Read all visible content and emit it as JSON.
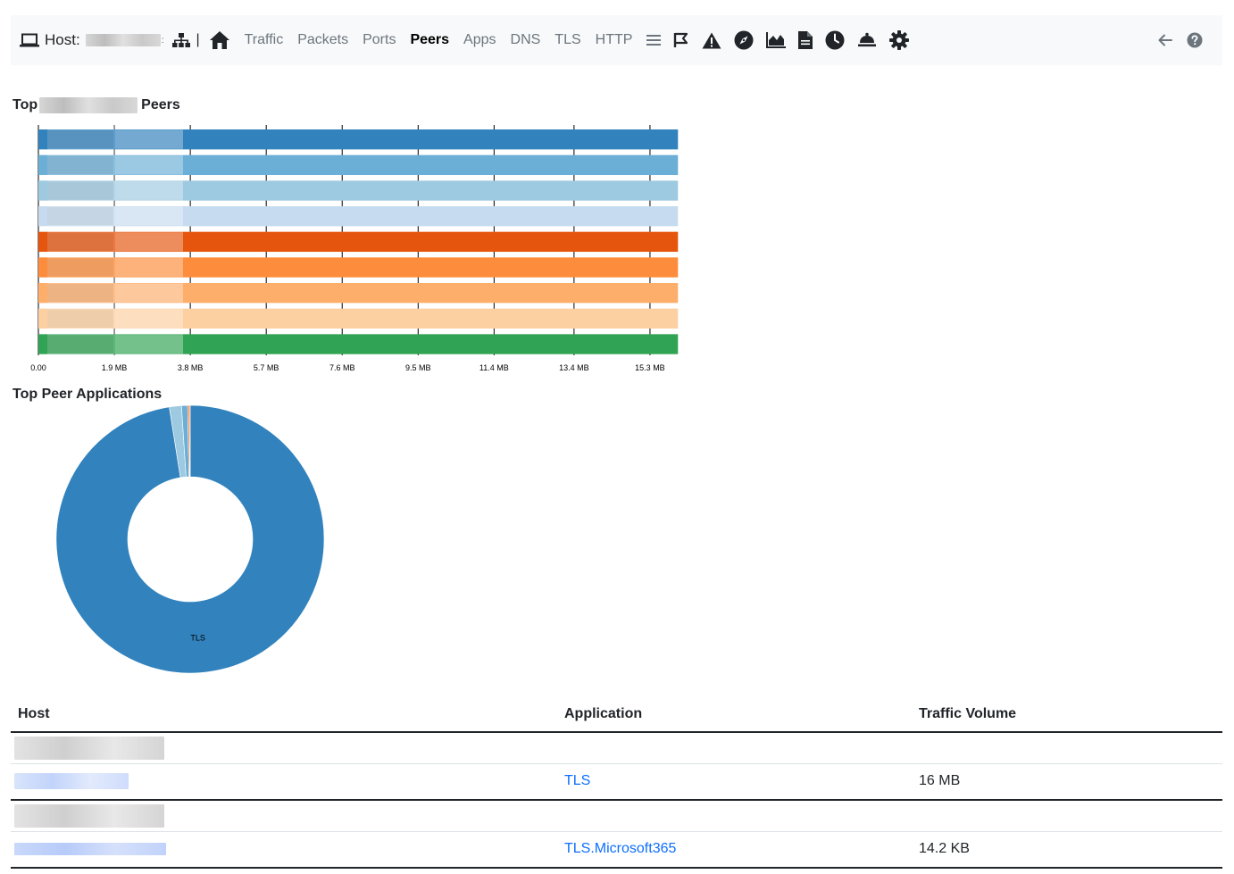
{
  "navbar": {
    "host_label": "Host:",
    "separator": "|",
    "items": [
      {
        "label": "Traffic",
        "active": false
      },
      {
        "label": "Packets",
        "active": false
      },
      {
        "label": "Ports",
        "active": false
      },
      {
        "label": "Peers",
        "active": true
      },
      {
        "label": "Apps",
        "active": false
      },
      {
        "label": "DNS",
        "active": false
      },
      {
        "label": "TLS",
        "active": false
      },
      {
        "label": "HTTP",
        "active": false
      }
    ],
    "icons": [
      "list-icon",
      "flag-icon",
      "warning-icon",
      "compass-icon",
      "area-chart-icon",
      "file-icon",
      "clock-icon",
      "bell-icon",
      "gear-icon"
    ],
    "right_icons": [
      "back-arrow-icon",
      "help-icon"
    ]
  },
  "peers_section": {
    "title_start": "Top",
    "title_end": "Peers"
  },
  "chart_data": {
    "type": "bar",
    "orientation": "horizontal",
    "categories": [
      "",
      "",
      "",
      "",
      "",
      "",
      "",
      "",
      ""
    ],
    "values": [
      16.0,
      16.0,
      16.0,
      16.0,
      16.0,
      16.0,
      16.0,
      16.0,
      16.0
    ],
    "colors": [
      "#3182bd",
      "#6baed6",
      "#9ecae1",
      "#c6dbef",
      "#e6550d",
      "#fd8d3c",
      "#fdae6b",
      "#fdd0a2",
      "#31a354"
    ],
    "x_ticks": [
      "0.00",
      "1.9 MB",
      "3.8 MB",
      "5.7 MB",
      "7.6 MB",
      "9.5 MB",
      "11.4 MB",
      "13.4 MB",
      "15.3 MB"
    ],
    "x_tick_values": [
      0,
      1.9,
      3.8,
      5.7,
      7.6,
      9.5,
      11.4,
      13.4,
      15.3
    ],
    "xlim": [
      0,
      17.2
    ],
    "grid": true
  },
  "apps_section": {
    "title": "Top Peer Applications"
  },
  "donut_data": {
    "type": "pie",
    "slices": [
      {
        "label": "TLS",
        "value": 16000,
        "color": "#3182bd"
      },
      {
        "label": "",
        "value": 240,
        "color": "#9ecae1"
      },
      {
        "label": "",
        "value": 120,
        "color": "#6baed6"
      },
      {
        "label": "",
        "value": 30,
        "color": "#e6550d"
      },
      {
        "label": "",
        "value": 20,
        "color": "#fd8d3c"
      }
    ]
  },
  "table": {
    "headers": [
      "Host",
      "Application",
      "Traffic Volume"
    ],
    "rows": [
      {
        "application": "TLS",
        "volume": "16 MB"
      },
      {
        "application": "TLS.Microsoft365",
        "volume": "14.2 KB"
      }
    ]
  }
}
